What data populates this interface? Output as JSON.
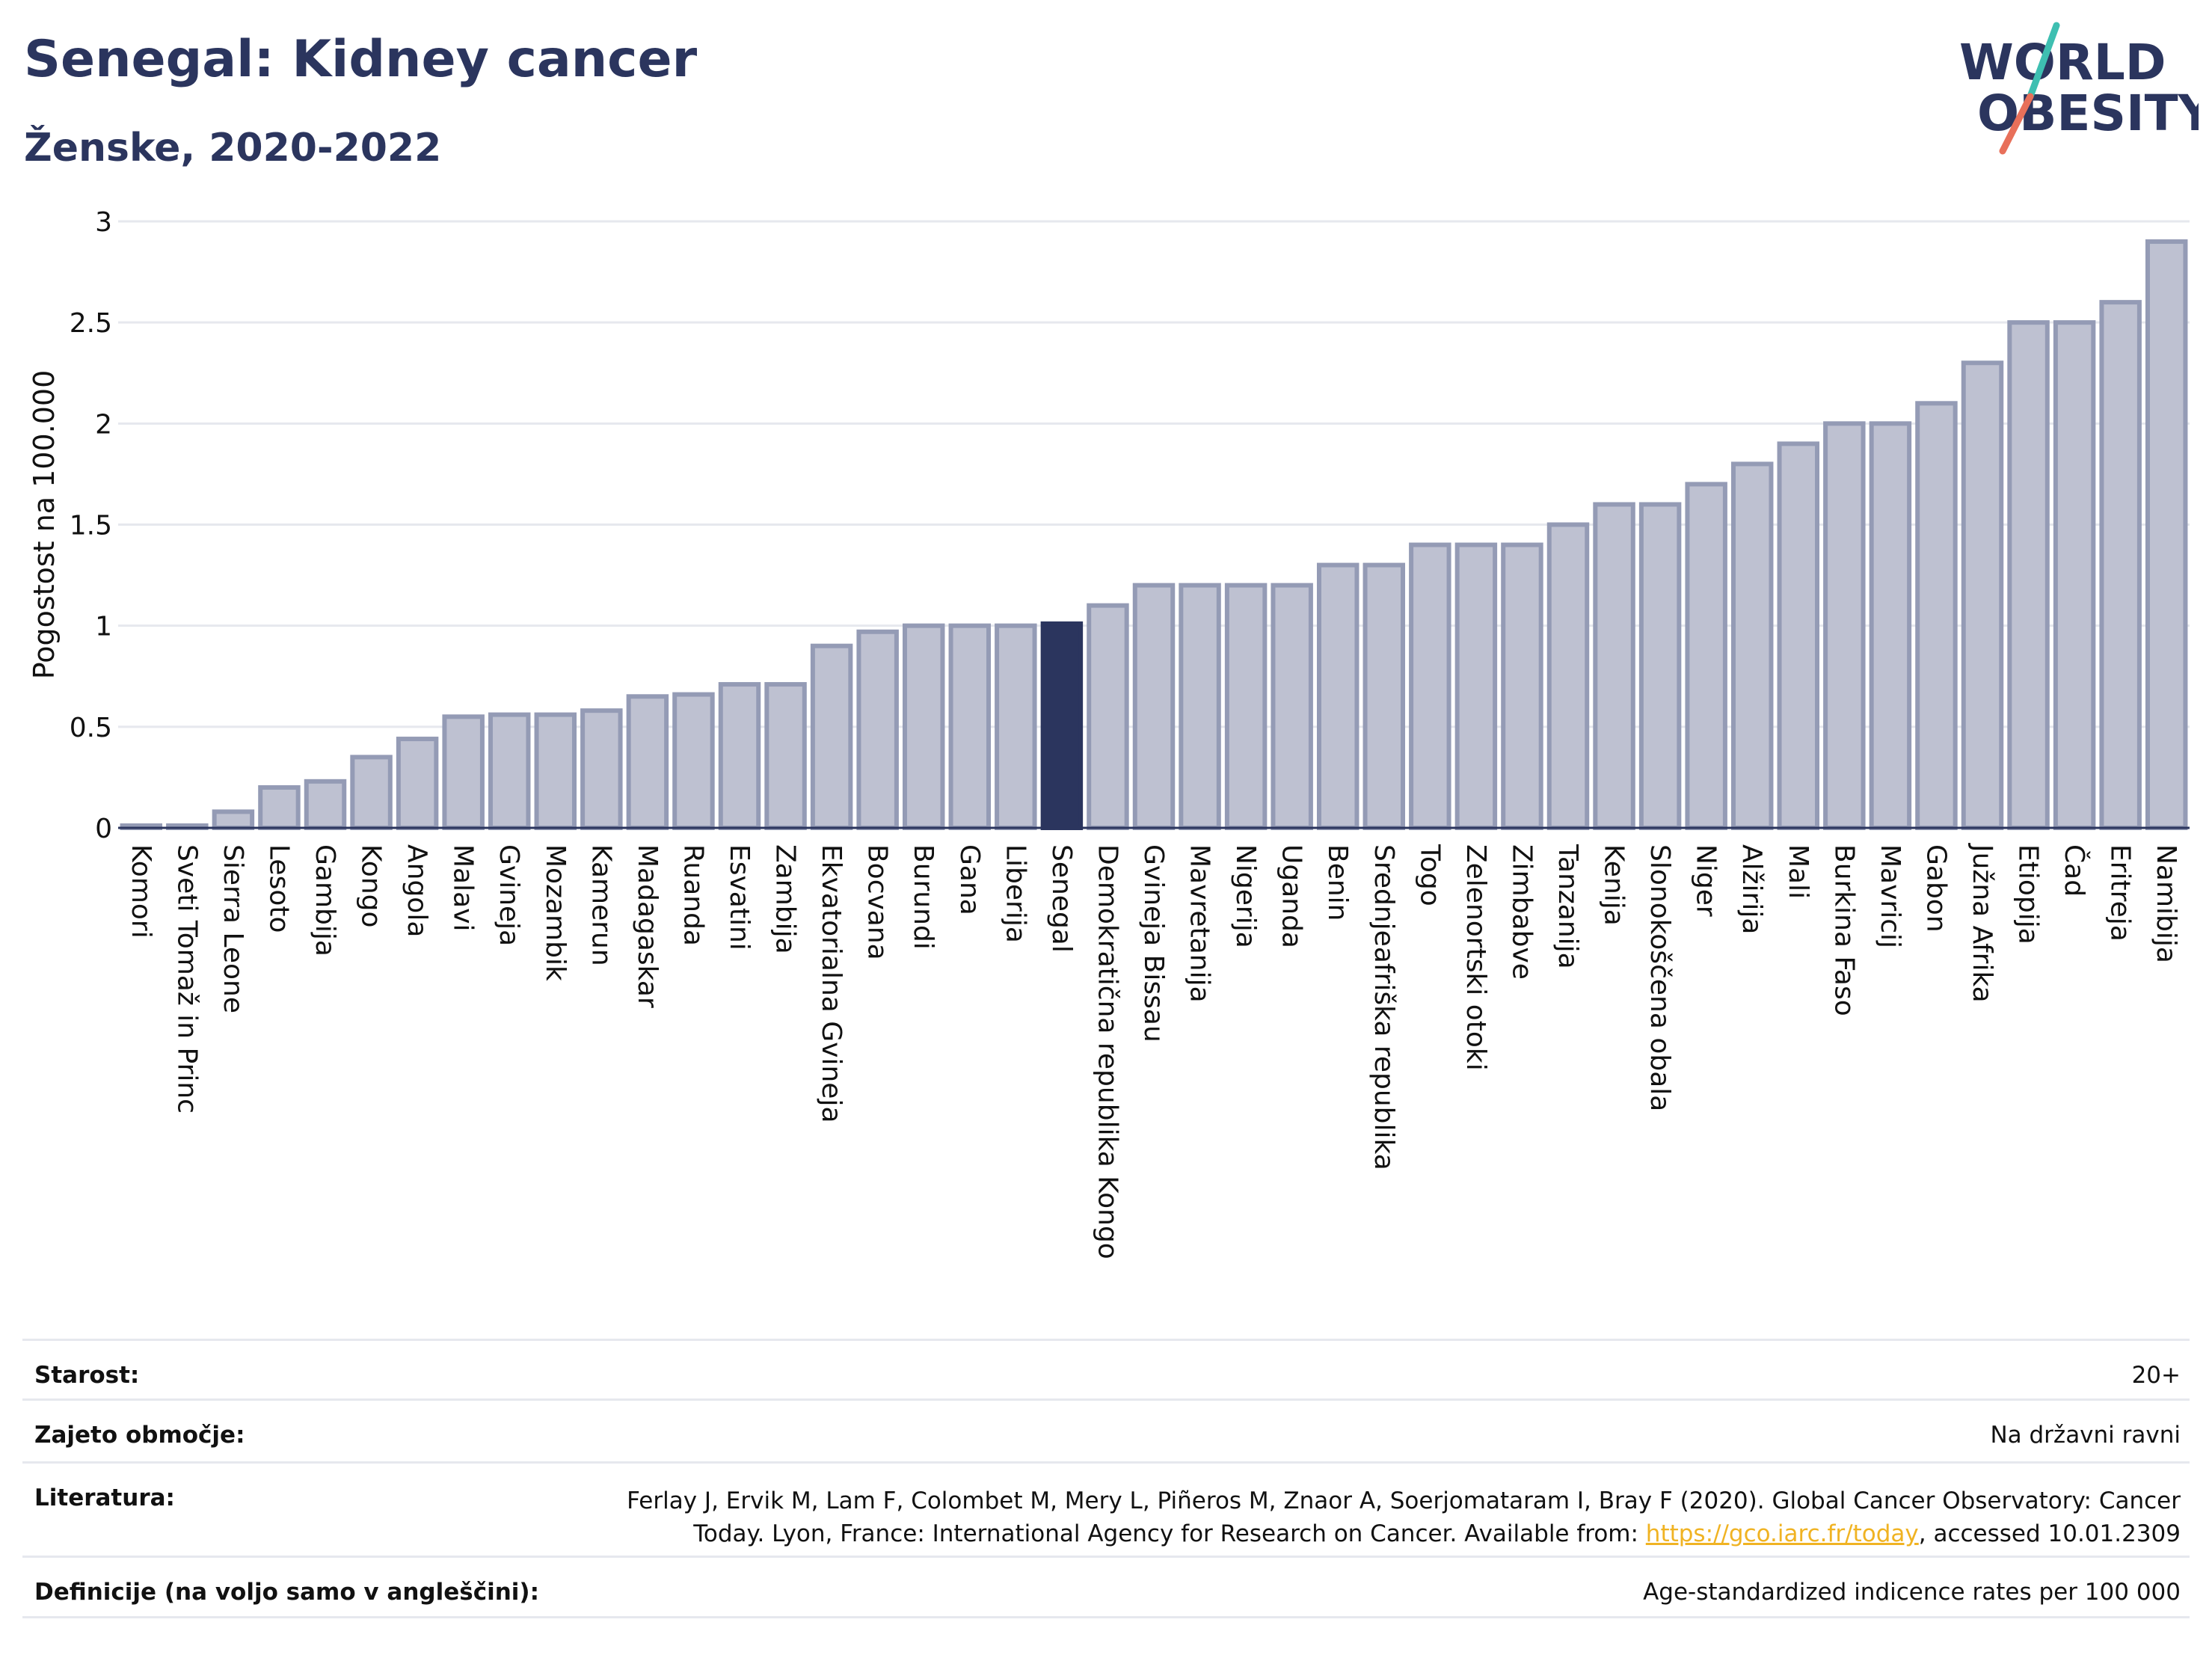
{
  "header": {
    "title": "Senegal: Kidney cancer",
    "subtitle": "Ženske, 2020-2022"
  },
  "logo": {
    "line1": "WORLD",
    "line2": "OBESITY",
    "accent_colors": [
      "#3ebfb1",
      "#e8705a"
    ]
  },
  "colors": {
    "bar_fill": "#bec1d1",
    "bar_stroke": "#949bb5",
    "highlight": "#2b355e",
    "text": "#2b355e",
    "grid": "#e6e8ee"
  },
  "chart_data": {
    "type": "bar",
    "title": "Senegal: Kidney cancer",
    "subtitle": "Ženske, 2020-2022",
    "ylabel": "Pogostost na 100.000",
    "xlabel": "",
    "ylim": [
      0,
      3
    ],
    "yticks": [
      0,
      0.5,
      1,
      1.5,
      2,
      2.5,
      3
    ],
    "ytick_labels": [
      "0",
      "0.5",
      "1",
      "1.5",
      "2",
      "2.5",
      "3"
    ],
    "grid": true,
    "highlight": "Senegal",
    "categories": [
      "Komori",
      "Sveti Tomaž in Princ",
      "Sierra Leone",
      "Lesoto",
      "Gambija",
      "Kongo",
      "Angola",
      "Malavi",
      "Gvineja",
      "Mozambik",
      "Kamerun",
      "Madagaskar",
      "Ruanda",
      "Esvatini",
      "Zambija",
      "Ekvatorialna Gvineja",
      "Bocvana",
      "Burundi",
      "Gana",
      "Liberija",
      "Senegal",
      "Demokratična republika Kongo",
      "Gvineja Bissau",
      "Mavretanija",
      "Nigerija",
      "Uganda",
      "Benin",
      "Srednjeafriška republika",
      "Togo",
      "Zelenortski otoki",
      "Zimbabve",
      "Tanzanija",
      "Kenija",
      "Slonokoščena obala",
      "Niger",
      "Alžirija",
      "Mali",
      "Burkina Faso",
      "Mavricij",
      "Gabon",
      "Južna Afrika",
      "Etiopija",
      "Čad",
      "Eritreja",
      "Namibija"
    ],
    "values": [
      0.01,
      0.01,
      0.08,
      0.2,
      0.23,
      0.35,
      0.44,
      0.55,
      0.56,
      0.56,
      0.58,
      0.65,
      0.66,
      0.71,
      0.71,
      0.9,
      0.97,
      1.0,
      1.0,
      1.0,
      1.01,
      1.1,
      1.2,
      1.2,
      1.2,
      1.2,
      1.3,
      1.3,
      1.4,
      1.4,
      1.4,
      1.5,
      1.6,
      1.6,
      1.7,
      1.8,
      1.9,
      2.0,
      2.0,
      2.1,
      2.3,
      2.5,
      2.5,
      2.6,
      2.9
    ]
  },
  "footer": {
    "rows": [
      {
        "label": "Starost:",
        "value": "20+"
      },
      {
        "label": "Zajeto območje:",
        "value": "Na državni ravni"
      },
      {
        "label": "Literatura:",
        "value_line1": "Ferlay J, Ervik M, Lam F, Colombet M, Mery L, Piñeros M, Znaor A, Soerjomataram I, Bray F (2020). Global Cancer Observatory: Cancer",
        "value_line2_pre": "Today. Lyon, France: International Agency for Research on Cancer. Available from: ",
        "link_text": "https://gco.iarc.fr/today",
        "value_line2_post": ", accessed 10.01.2309"
      },
      {
        "label": "Definicije (na voljo samo v angleščini):",
        "value": "Age-standardized indicence rates per 100 000"
      }
    ]
  }
}
